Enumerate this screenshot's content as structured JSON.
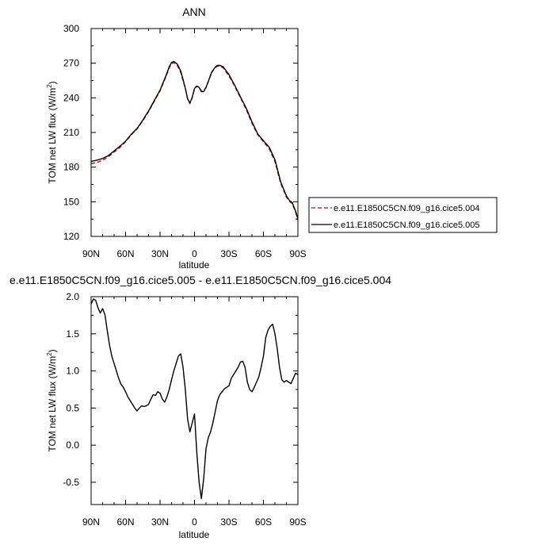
{
  "chart_data": [
    {
      "type": "line",
      "title": "ANN",
      "ylabel": "TOM net LW flux (W/m",
      "ylabel_sup": "2",
      "ylabel_close": ")",
      "xlabel": "latitude",
      "xlim": [
        90,
        -90
      ],
      "ylim": [
        120,
        300
      ],
      "xticks": [
        90,
        60,
        30,
        0,
        -30,
        -60,
        -90
      ],
      "xtick_labels": [
        "90N",
        "60N",
        "30N",
        "0",
        "30S",
        "60S",
        "90S"
      ],
      "yticks": [
        120,
        150,
        180,
        210,
        240,
        270,
        300
      ],
      "ytick_labels": [
        "120",
        "150",
        "180",
        "210",
        "240",
        "270",
        "300"
      ],
      "legend_position": "right",
      "series": [
        {
          "name": "e.e11.E1850C5CN.f09_g16.cice5.004",
          "color": "#cc0000",
          "dash": "dashed",
          "x": [
            90,
            85,
            80,
            75,
            70,
            65,
            60,
            55,
            50,
            45,
            40,
            35,
            30,
            25,
            22,
            20,
            18,
            15,
            12,
            10,
            8,
            6,
            4,
            2,
            0,
            -2,
            -4,
            -6,
            -8,
            -10,
            -12,
            -15,
            -18,
            -20,
            -22,
            -25,
            -30,
            -35,
            -40,
            -45,
            -50,
            -55,
            -60,
            -65,
            -70,
            -75,
            -80,
            -83,
            -85,
            -88,
            -90
          ],
          "y": [
            183,
            184,
            186,
            189,
            193,
            197,
            202,
            208,
            213,
            220,
            228,
            237,
            246,
            258,
            266,
            269.5,
            270.5,
            268,
            262,
            255,
            248,
            239,
            235,
            240,
            248,
            250,
            249,
            246,
            246,
            249,
            254,
            262,
            266,
            267.5,
            267.5,
            266,
            259,
            250,
            240,
            230,
            218,
            208,
            202,
            196,
            185,
            166,
            154,
            150,
            148.5,
            141,
            134
          ]
        },
        {
          "name": "e.e11.E1850C5CN.f09_g16.cice5.005",
          "color": "#000000",
          "dash": "solid",
          "x": [
            90,
            85,
            80,
            75,
            70,
            65,
            60,
            55,
            50,
            45,
            40,
            35,
            30,
            25,
            22,
            20,
            18,
            15,
            12,
            10,
            8,
            6,
            4,
            2,
            0,
            -2,
            -4,
            -6,
            -8,
            -10,
            -12,
            -15,
            -18,
            -20,
            -22,
            -25,
            -30,
            -35,
            -40,
            -45,
            -50,
            -55,
            -60,
            -65,
            -70,
            -75,
            -80,
            -83,
            -85,
            -88,
            -90
          ],
          "y": [
            185,
            186,
            187.5,
            190,
            194,
            198,
            202.5,
            208.5,
            213.5,
            220.7,
            228.6,
            237.7,
            246.7,
            258.8,
            266.9,
            270.6,
            271.5,
            269.3,
            263.2,
            256,
            248.4,
            239.2,
            235.5,
            240.4,
            248.2,
            250.2,
            249.1,
            245.3,
            245.4,
            249,
            254.2,
            262.4,
            266.6,
            268.1,
            268.2,
            266.8,
            260.1,
            250.9,
            240.9,
            231.1,
            219.2,
            208.8,
            202.8,
            197.3,
            186.5,
            167.3,
            155,
            150.7,
            149.5,
            141.9,
            135
          ]
        }
      ]
    },
    {
      "type": "line",
      "title": "e.e11.E1850C5CN.f09_g16.cice5.005 - e.e11.E1850C5CN.f09_g16.cice5.004",
      "ylabel": "TOM net LW flux (W/m",
      "ylabel_sup": "2",
      "ylabel_close": ")",
      "xlabel": "latitude",
      "xlim": [
        90,
        -90
      ],
      "ylim": [
        -0.8,
        2.0
      ],
      "xticks": [
        90,
        60,
        30,
        0,
        -30,
        -60,
        -90
      ],
      "xtick_labels": [
        "90N",
        "60N",
        "30N",
        "0",
        "30S",
        "60S",
        "90S"
      ],
      "yticks": [
        -0.5,
        0.0,
        0.5,
        1.0,
        1.5,
        2.0
      ],
      "ytick_labels": [
        "-0.5",
        "0.0",
        "0.5",
        "1.0",
        "1.5",
        "2.0"
      ],
      "series": [
        {
          "color": "#000000",
          "dash": "solid",
          "x": [
            90,
            88,
            86,
            84,
            82,
            80,
            78,
            76,
            74,
            72,
            70,
            68,
            66,
            64,
            62,
            60,
            58,
            56,
            54,
            52,
            50,
            48,
            46,
            44,
            42,
            40,
            38,
            36,
            34,
            32,
            30,
            28,
            26,
            24,
            22,
            20,
            18,
            16,
            14,
            12,
            10,
            8,
            6,
            4,
            2,
            0,
            -2,
            -4,
            -6,
            -8,
            -10,
            -12,
            -14,
            -16,
            -18,
            -20,
            -22,
            -24,
            -26,
            -28,
            -30,
            -32,
            -34,
            -36,
            -38,
            -40,
            -42,
            -44,
            -46,
            -48,
            -50,
            -52,
            -54,
            -56,
            -58,
            -60,
            -62,
            -64,
            -66,
            -68,
            -70,
            -72,
            -74,
            -76,
            -78,
            -80,
            -82,
            -84,
            -86,
            -88,
            -90
          ],
          "y": [
            1.9,
            1.97,
            1.95,
            1.85,
            1.78,
            1.84,
            1.76,
            1.55,
            1.35,
            1.2,
            1.1,
            1.0,
            0.9,
            0.82,
            0.78,
            0.72,
            0.65,
            0.6,
            0.55,
            0.5,
            0.46,
            0.5,
            0.53,
            0.52,
            0.53,
            0.55,
            0.62,
            0.68,
            0.67,
            0.72,
            0.7,
            0.62,
            0.58,
            0.65,
            0.75,
            0.88,
            1.0,
            1.1,
            1.2,
            1.23,
            1.05,
            0.75,
            0.35,
            0.18,
            0.3,
            0.42,
            -0.1,
            -0.5,
            -0.72,
            -0.45,
            -0.05,
            0.1,
            0.18,
            0.3,
            0.45,
            0.6,
            0.68,
            0.72,
            0.76,
            0.78,
            0.8,
            0.9,
            0.95,
            1.0,
            1.05,
            1.12,
            1.13,
            1.05,
            0.85,
            0.75,
            0.72,
            0.78,
            0.85,
            0.92,
            1.05,
            1.2,
            1.45,
            1.55,
            1.6,
            1.63,
            1.5,
            1.3,
            1.05,
            0.88,
            0.85,
            0.87,
            0.85,
            0.83,
            0.9,
            0.97,
            0.95
          ]
        }
      ]
    }
  ]
}
